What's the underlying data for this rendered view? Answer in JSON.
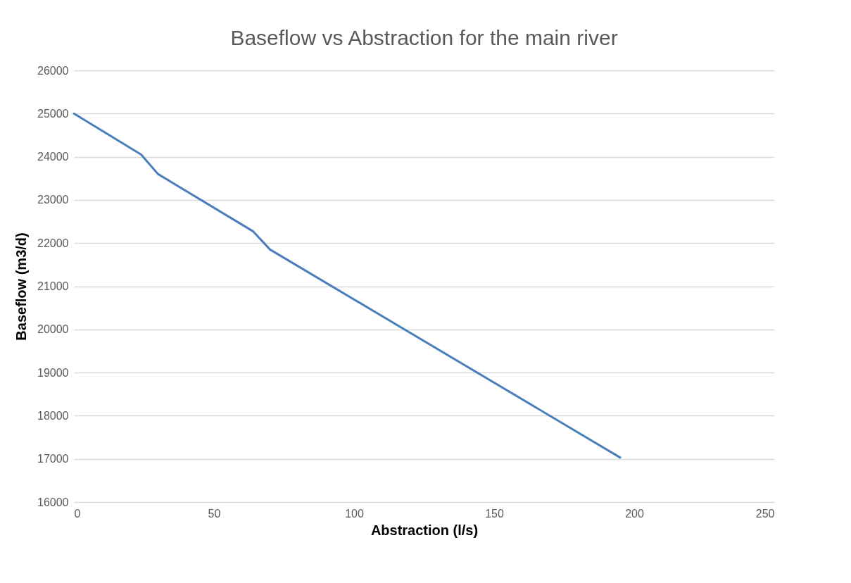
{
  "chart_data": {
    "type": "line",
    "title": "Baseflow vs Abstraction for the main river",
    "xlabel": "Abstraction (l/s)",
    "ylabel": "Baseflow (m3/d)",
    "x": [
      0,
      24,
      30,
      64,
      70,
      195
    ],
    "series": [
      {
        "color": "#4a7ebb",
        "values": [
          25000,
          24050,
          23600,
          22270,
          21850,
          17030
        ]
      }
    ],
    "xlim": [
      0,
      250
    ],
    "xticks": [
      0,
      50,
      100,
      150,
      200,
      250
    ],
    "ylim": [
      16000,
      26000
    ],
    "yticks": [
      16000,
      17000,
      18000,
      19000,
      20000,
      21000,
      22000,
      23000,
      24000,
      25000,
      26000
    ],
    "grid": "y",
    "marker": "none",
    "line_style": "solid"
  }
}
